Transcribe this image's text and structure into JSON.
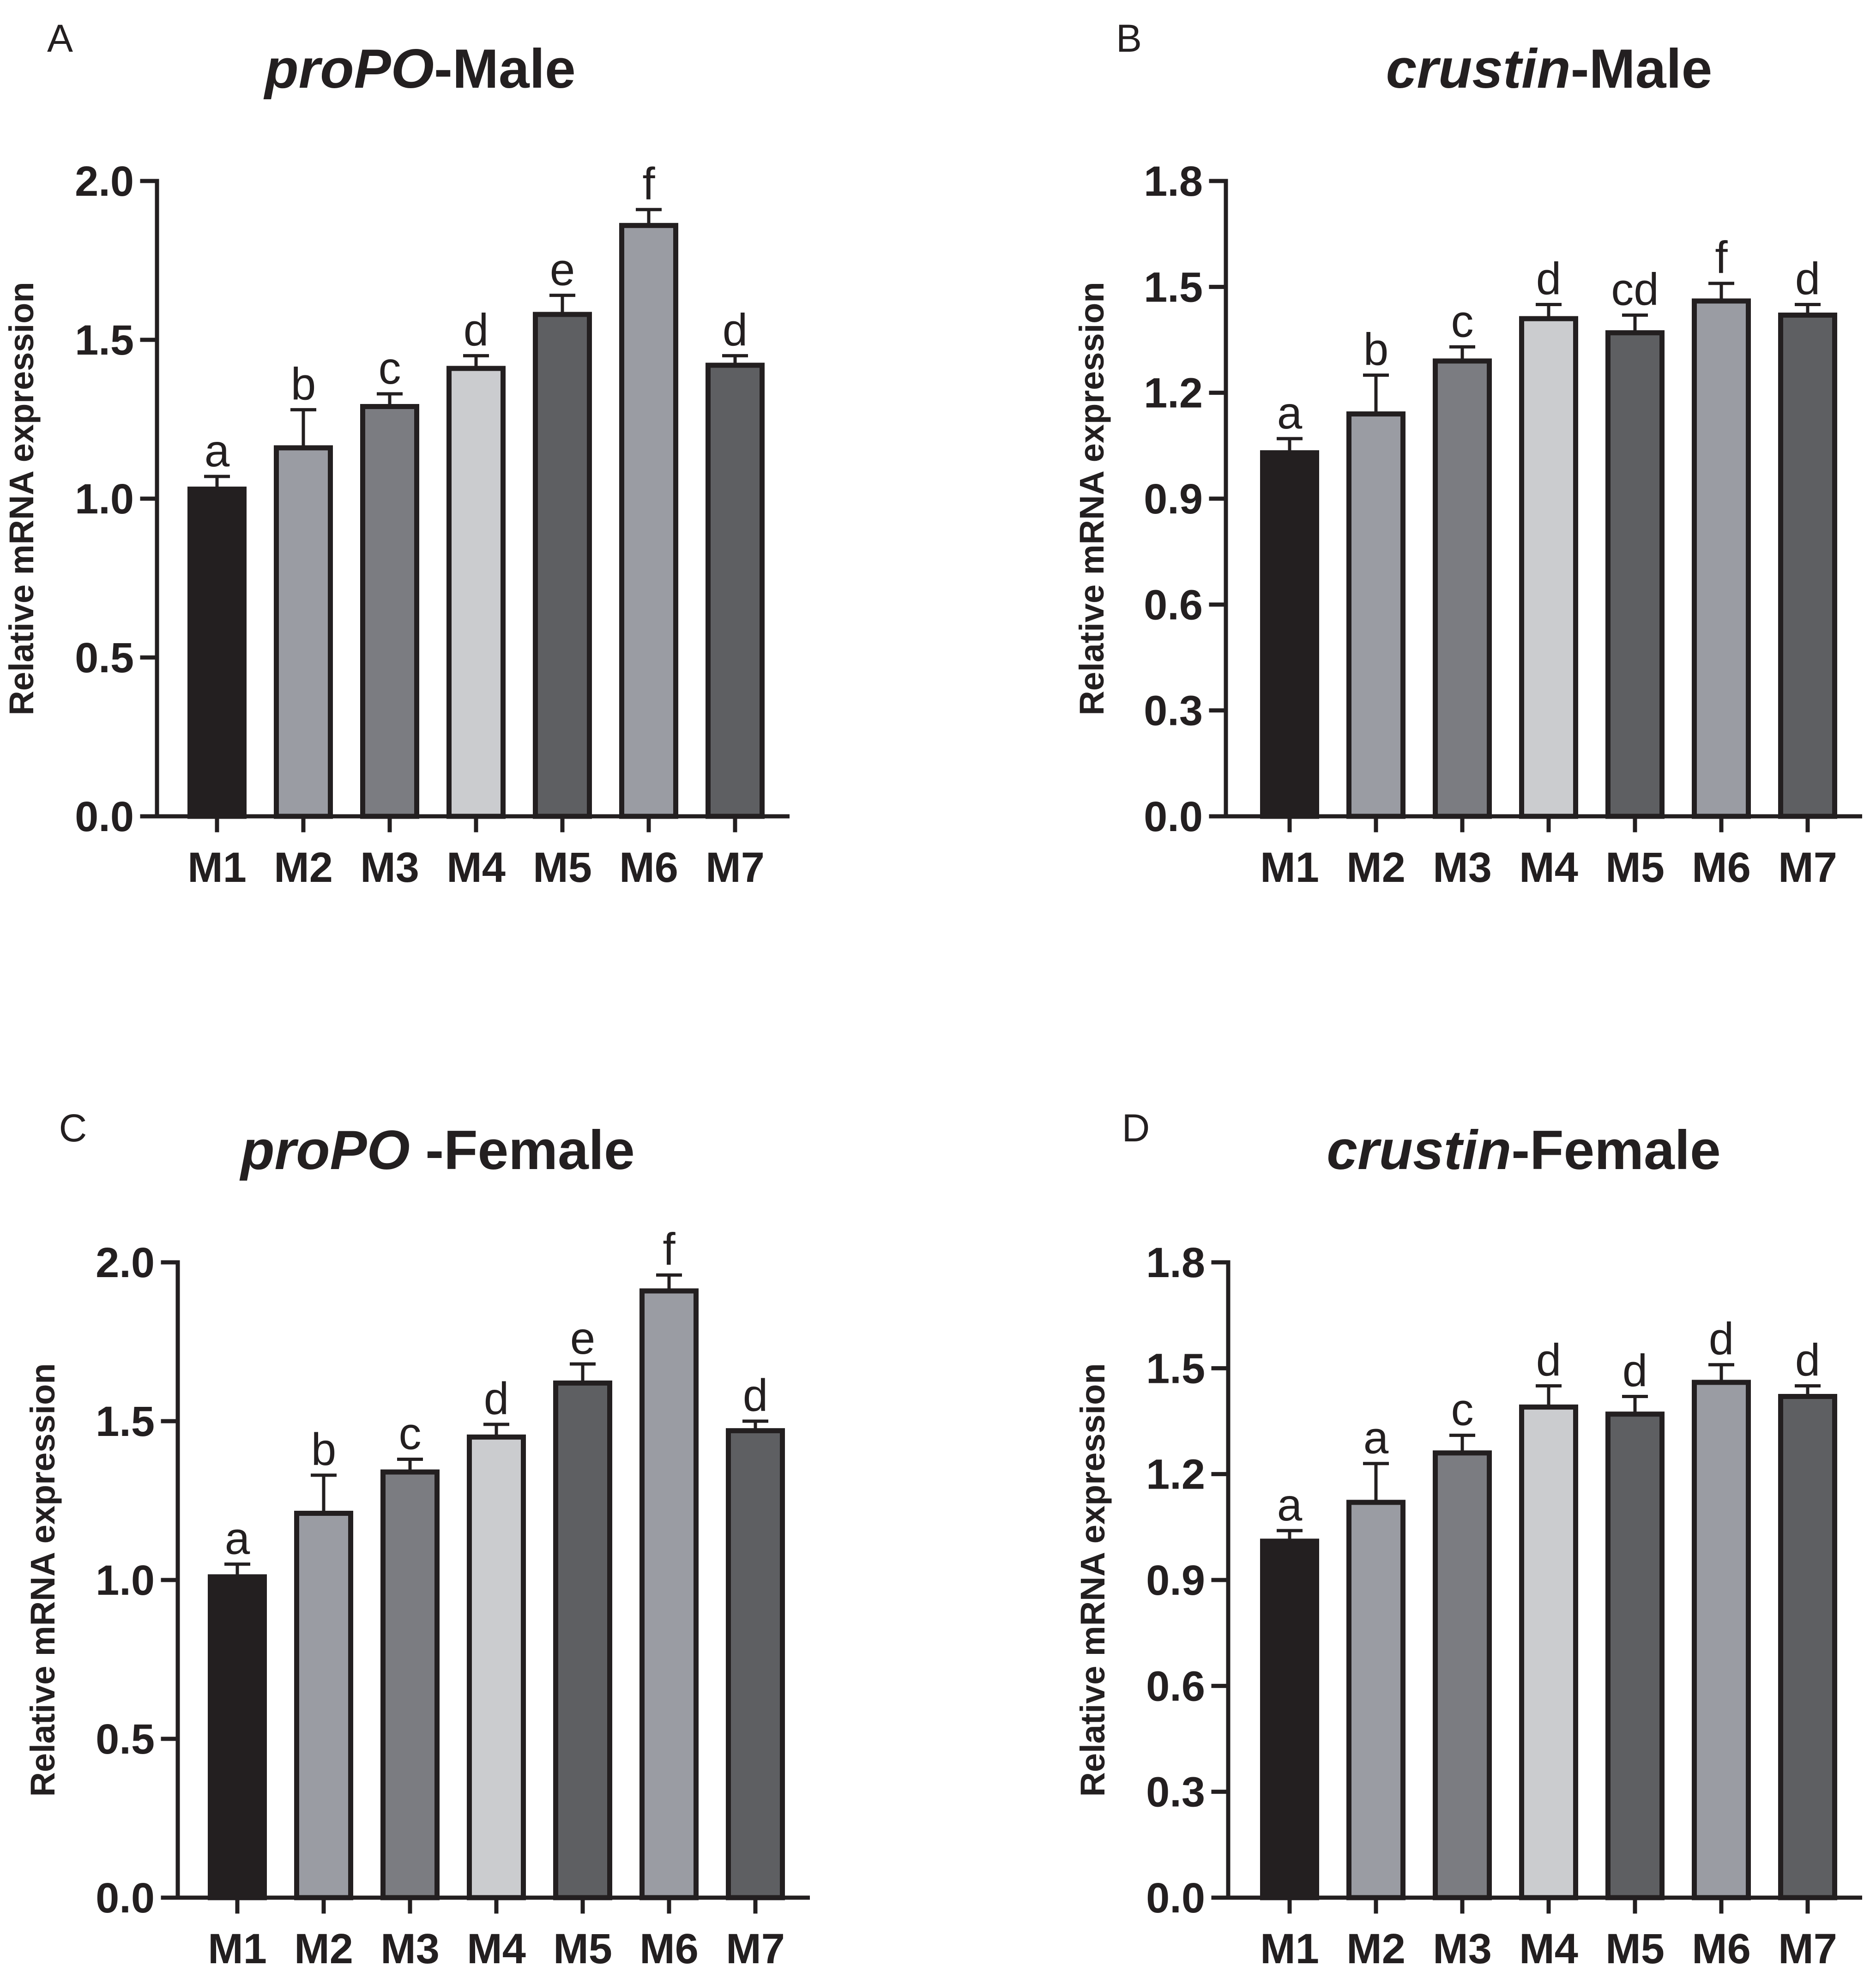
{
  "colors": {
    "axis": "#231f20",
    "bars": [
      "#231f20",
      "#9a9ca3",
      "#7b7c81",
      "#cbcccf",
      "#5e5f62",
      "#9a9ca3",
      "#5e5f62"
    ]
  },
  "chart_data": [
    {
      "panel": "A",
      "type": "bar",
      "title_italic": "proPO",
      "title_rest": "-Male",
      "xlabel": "",
      "ylabel": "Relative mRNA expression",
      "categories": [
        "M1",
        "M2",
        "M3",
        "M4",
        "M5",
        "M6",
        "M7"
      ],
      "values": [
        1.03,
        1.16,
        1.29,
        1.41,
        1.58,
        1.86,
        1.42
      ],
      "errors": [
        0.04,
        0.12,
        0.04,
        0.04,
        0.06,
        0.05,
        0.03
      ],
      "significance": [
        "a",
        "b",
        "c",
        "d",
        "e",
        "f",
        "d"
      ],
      "ylim": [
        0,
        2.0
      ],
      "yticks": [
        "0.0",
        "0.5",
        "1.0",
        "1.5",
        "2.0"
      ]
    },
    {
      "panel": "B",
      "type": "bar",
      "title_italic": "crustin",
      "title_rest": "-Male",
      "xlabel": "",
      "ylabel": "Relative mRNA expression",
      "categories": [
        "M1",
        "M2",
        "M3",
        "M4",
        "M5",
        "M6",
        "M7"
      ],
      "values": [
        1.03,
        1.14,
        1.29,
        1.41,
        1.37,
        1.46,
        1.42
      ],
      "errors": [
        0.04,
        0.11,
        0.04,
        0.04,
        0.05,
        0.05,
        0.03
      ],
      "significance": [
        "a",
        "b",
        "c",
        "d",
        "cd",
        "f",
        "d"
      ],
      "ylim": [
        0,
        1.8
      ],
      "yticks": [
        "0.0",
        "0.3",
        "0.6",
        "0.9",
        "1.2",
        "1.5",
        "1.8"
      ]
    },
    {
      "panel": "C",
      "type": "bar",
      "title_italic": "proPO",
      "title_rest": " -Female",
      "xlabel": "",
      "ylabel": "Relative mRNA expression",
      "categories": [
        "M1",
        "M2",
        "M3",
        "M4",
        "M5",
        "M6",
        "M7"
      ],
      "values": [
        1.01,
        1.21,
        1.34,
        1.45,
        1.62,
        1.91,
        1.47
      ],
      "errors": [
        0.04,
        0.12,
        0.04,
        0.04,
        0.06,
        0.05,
        0.03
      ],
      "significance": [
        "a",
        "b",
        "c",
        "d",
        "e",
        "f",
        "d"
      ],
      "ylim": [
        0,
        2.0
      ],
      "yticks": [
        "0.0",
        "0.5",
        "1.0",
        "1.5",
        "2.0"
      ]
    },
    {
      "panel": "D",
      "type": "bar",
      "title_italic": "crustin",
      "title_rest": "-Female",
      "xlabel": "",
      "ylabel": "Relative mRNA expression",
      "categories": [
        "M1",
        "M2",
        "M3",
        "M4",
        "M5",
        "M6",
        "M7"
      ],
      "values": [
        1.01,
        1.12,
        1.26,
        1.39,
        1.37,
        1.46,
        1.42
      ],
      "errors": [
        0.03,
        0.11,
        0.05,
        0.06,
        0.05,
        0.05,
        0.03
      ],
      "significance": [
        "a",
        "a",
        "c",
        "d",
        "d",
        "d",
        "d"
      ],
      "ylim": [
        0,
        1.8
      ],
      "yticks": [
        "0.0",
        "0.3",
        "0.6",
        "0.9",
        "1.2",
        "1.5",
        "1.8"
      ]
    }
  ]
}
